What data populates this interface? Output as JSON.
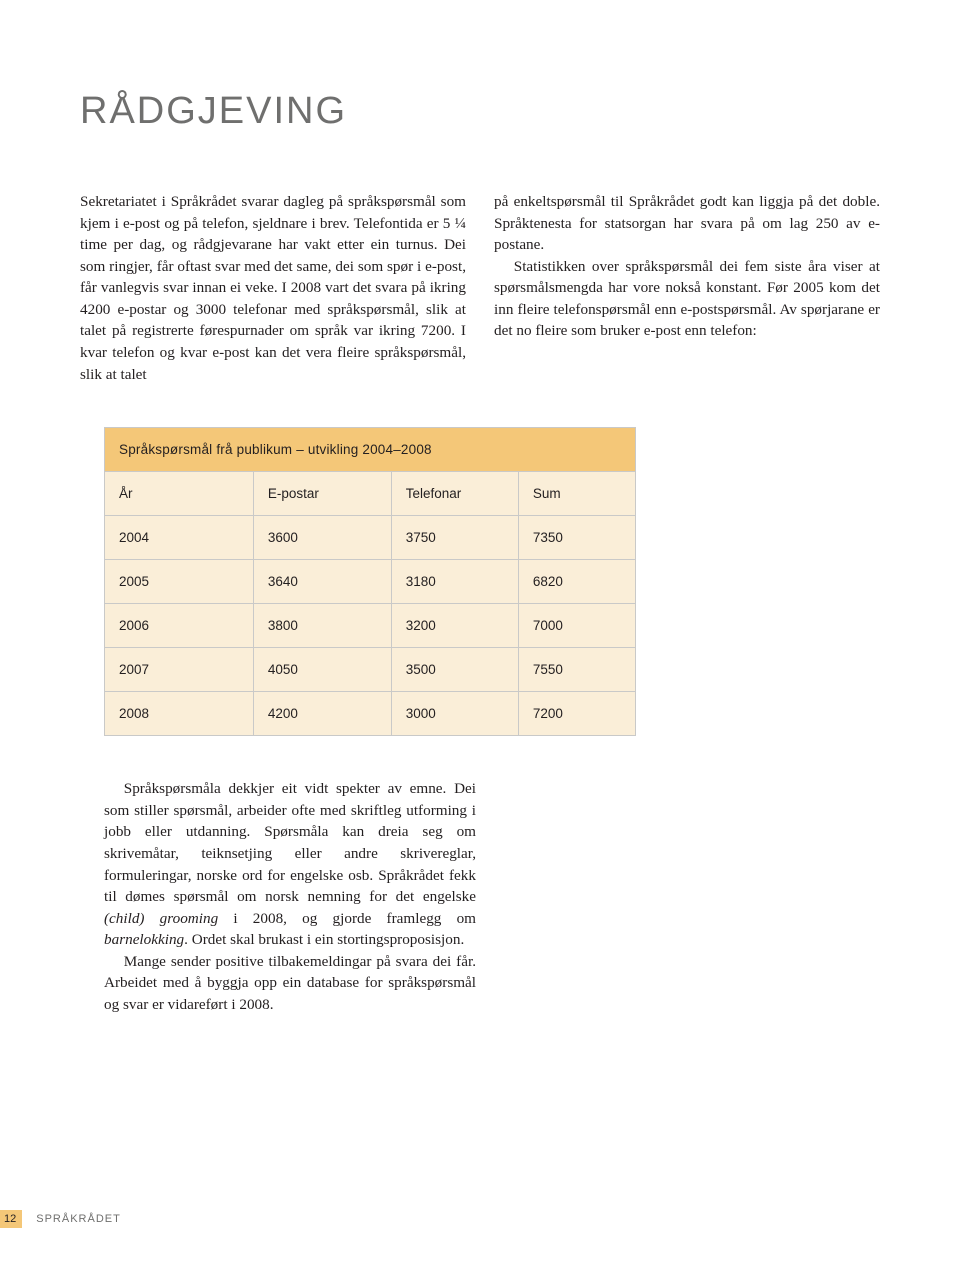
{
  "heading": "RÅDGJEVING",
  "body": {
    "col1": "Sekretariatet i Språkrådet svarar dagleg på språkspørsmål som kjem i e-post og på telefon, sjeldnare i brev. Telefontida er 5 ¼ time per dag, og rådgjevarane har vakt etter ein turnus. Dei som ringjer, får oftast svar med det same, dei som spør i e-post, får vanlegvis svar innan ei veke. I 2008 vart det svara på ikring 4200 e-postar og 3000 telefonar med språkspørsmål, slik at talet på registrerte førespurnader om språk var ikring 7200. I kvar telefon og kvar e-post kan det vera fleire språkspørsmål, slik at talet",
    "col2_p1": "på enkeltspørsmål til Språkrådet godt kan liggja på det doble. Språktenesta for statsorgan har svara på om lag 250 av e-postane.",
    "col2_p2": "Statistikken over språkspørsmål dei fem siste åra viser at spørsmålsmengda har vore nokså konstant. Før 2005 kom det inn fleire telefonspørsmål enn e-postspørsmål. Av spørjarane er det no fleire som bruker e-post enn telefon:"
  },
  "table": {
    "title": "Språkspørsmål frå publikum – utvikling 2004–2008",
    "columns": [
      "År",
      "E-postar",
      "Telefonar",
      "Sum"
    ],
    "rows": [
      [
        "2004",
        "3600",
        "3750",
        "7350"
      ],
      [
        "2005",
        "3640",
        "3180",
        "6820"
      ],
      [
        "2006",
        "3800",
        "3200",
        "7000"
      ],
      [
        "2007",
        "4050",
        "3500",
        "7550"
      ],
      [
        "2008",
        "4200",
        "3000",
        "7200"
      ]
    ],
    "colors": {
      "title_bg": "#f4c778",
      "row_bg": "#faeed8",
      "border": "#c9c9c8",
      "text": "#231f20"
    }
  },
  "after": {
    "p1_a": "Språkspørsmåla dekkjer eit vidt spekter av emne. Dei som stiller spørsmål, arbeider ofte med skriftleg utforming i jobb eller utdanning. Spørsmåla kan dreia seg om skrivemåtar, teiknsetjing eller andre skrivereglar, formuleringar, norske ord for engelske osb. Språkrådet fekk til dømes spørsmål om norsk nemning for det engelske ",
    "p1_italic1": "(child) grooming",
    "p1_b": " i 2008, og gjorde framlegg om ",
    "p1_italic2": "barnelokking",
    "p1_c": ". Ordet skal brukast i ein stortingsproposisjon.",
    "p2": "Mange sender positive tilbakemeldingar på svara dei får. Arbeidet med å byggja opp ein database for språkspørsmål og svar er vidareført i 2008."
  },
  "footer": {
    "page_number": "12",
    "label": "SPRÅKRÅDET"
  }
}
